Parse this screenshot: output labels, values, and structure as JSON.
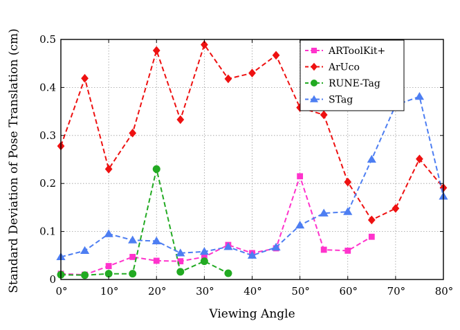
{
  "chart_data": {
    "type": "line",
    "xlabel": "Viewing Angle",
    "ylabel": "Standard Deviation of Pose Translation (cm)",
    "xlim": [
      0,
      80
    ],
    "ylim": [
      0,
      0.5
    ],
    "x_ticks": [
      0,
      10,
      20,
      30,
      40,
      50,
      60,
      70,
      80
    ],
    "x_tick_labels": [
      "0°",
      "10°",
      "20°",
      "30°",
      "40°",
      "50°",
      "60°",
      "70°",
      "80°"
    ],
    "y_ticks": [
      0,
      0.1,
      0.2,
      0.3,
      0.4,
      0.5
    ],
    "y_tick_labels": [
      "0",
      "0.1",
      "0.2",
      "0.3",
      "0.4",
      "0.5"
    ],
    "grid": true,
    "legend_position": "top-right",
    "series": [
      {
        "name": "ARToolKit+",
        "color": "#ff33cc",
        "marker": "square",
        "x": [
          0,
          5,
          10,
          15,
          20,
          25,
          30,
          35,
          40,
          45,
          50,
          55,
          60,
          65
        ],
        "y": [
          0.012,
          0.01,
          0.028,
          0.047,
          0.039,
          0.038,
          0.047,
          0.072,
          0.055,
          0.065,
          0.215,
          0.062,
          0.06,
          0.089
        ]
      },
      {
        "name": "ArUco",
        "color": "#ee1111",
        "marker": "diamond",
        "x": [
          0,
          5,
          10,
          15,
          20,
          25,
          30,
          35,
          40,
          45,
          50,
          55,
          60,
          65,
          70,
          75,
          80
        ],
        "y": [
          0.278,
          0.419,
          0.23,
          0.305,
          0.477,
          0.333,
          0.489,
          0.418,
          0.43,
          0.467,
          0.358,
          0.343,
          0.203,
          0.124,
          0.148,
          0.251,
          0.191
        ]
      },
      {
        "name": "RUNE-Tag",
        "color": "#22aa22",
        "marker": "circle",
        "x": [
          0,
          5,
          10,
          15,
          20,
          25,
          30,
          35
        ],
        "y": [
          0.01,
          0.009,
          0.012,
          0.012,
          0.23,
          0.016,
          0.038,
          0.013
        ]
      },
      {
        "name": "STag",
        "color": "#4d7ef2",
        "marker": "triangle",
        "x": [
          0,
          5,
          10,
          15,
          20,
          25,
          30,
          35,
          40,
          45,
          50,
          55,
          60,
          65,
          70,
          75,
          80
        ],
        "y": [
          0.047,
          0.06,
          0.095,
          0.082,
          0.08,
          0.055,
          0.058,
          0.068,
          0.05,
          0.067,
          0.113,
          0.138,
          0.141,
          0.25,
          0.363,
          0.381,
          0.173
        ]
      }
    ]
  }
}
